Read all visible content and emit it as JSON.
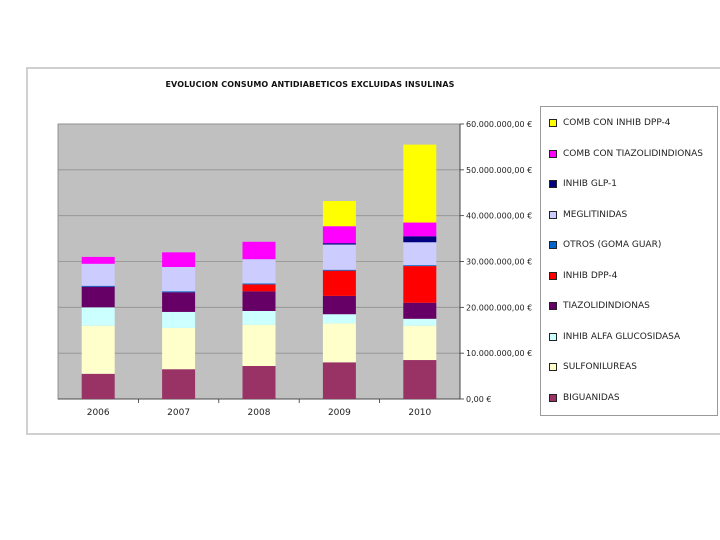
{
  "chart_data": {
    "type": "bar",
    "stacked": true,
    "title": "EVOLUCION CONSUMO ANTIDIABETICOS EXCLUIDAS INSULINAS",
    "xlabel": "",
    "ylabel": "",
    "categories": [
      "2006",
      "2007",
      "2008",
      "2009",
      "2010"
    ],
    "ylim": [
      0,
      60000000
    ],
    "y_ticks": [
      {
        "value": 0,
        "label": "0,00 €"
      },
      {
        "value": 10000000,
        "label": "10.000.000,00 €"
      },
      {
        "value": 20000000,
        "label": "20.000.000,00 €"
      },
      {
        "value": 30000000,
        "label": "30.000.000,00 €"
      },
      {
        "value": 40000000,
        "label": "40.000.000,00 €"
      },
      {
        "value": 50000000,
        "label": "50.000.000,00 €"
      },
      {
        "value": 60000000,
        "label": "60.000.000,00 €"
      }
    ],
    "grid": true,
    "plot_background": "#c0c0c0",
    "legend_position": "right",
    "series": [
      {
        "name": "BIGUANIDAS",
        "color": "#993366",
        "values": [
          5500000,
          6500000,
          7200000,
          8000000,
          8500000
        ]
      },
      {
        "name": "SULFONILUREAS",
        "color": "#ffffcc",
        "values": [
          10500000,
          9000000,
          9000000,
          8500000,
          7500000
        ]
      },
      {
        "name": "INHIB ALFA GLUCOSIDASA",
        "color": "#ccffff",
        "values": [
          4000000,
          3500000,
          3000000,
          2000000,
          1500000
        ]
      },
      {
        "name": "TIAZOLIDINDIONAS",
        "color": "#660066",
        "values": [
          4500000,
          4300000,
          4300000,
          4000000,
          3500000
        ]
      },
      {
        "name": "INHIB DPP-4",
        "color": "#ff0000",
        "values": [
          0,
          0,
          1500000,
          5500000,
          8000000
        ]
      },
      {
        "name": "OTROS (GOMA GUAR)",
        "color": "#0066cc",
        "values": [
          200000,
          200000,
          200000,
          200000,
          200000
        ]
      },
      {
        "name": "MEGLITINIDAS",
        "color": "#ccccff",
        "values": [
          4800000,
          5300000,
          5300000,
          5500000,
          5000000
        ]
      },
      {
        "name": "INHIB GLP-1",
        "color": "#000080",
        "values": [
          0,
          0,
          0,
          300000,
          1300000
        ]
      },
      {
        "name": "COMB CON TIAZOLIDINDIONAS",
        "color": "#ff00ff",
        "values": [
          1500000,
          3200000,
          3800000,
          3700000,
          3000000
        ]
      },
      {
        "name": "COMB CON INHIB DPP-4",
        "color": "#ffff00",
        "values": [
          0,
          0,
          0,
          5500000,
          17000000
        ]
      }
    ]
  }
}
